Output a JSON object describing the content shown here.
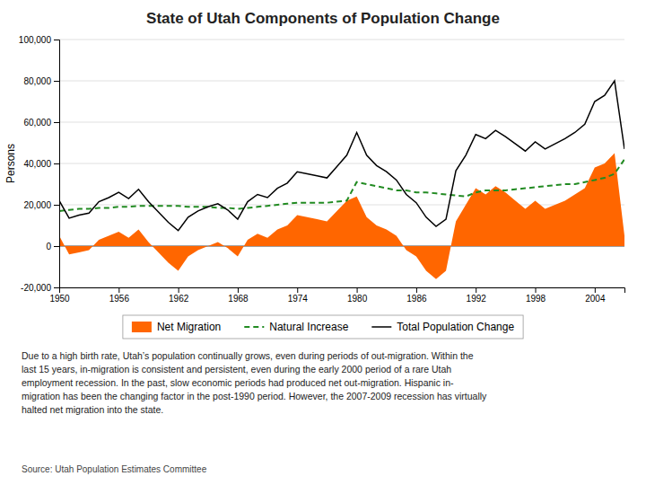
{
  "chart_data": {
    "type": "line",
    "title": "State of Utah Components of Population Change",
    "ylabel": "Persons",
    "x": [
      1950,
      1951,
      1952,
      1953,
      1954,
      1955,
      1956,
      1957,
      1958,
      1959,
      1960,
      1961,
      1962,
      1963,
      1964,
      1965,
      1966,
      1967,
      1968,
      1969,
      1970,
      1971,
      1972,
      1973,
      1974,
      1975,
      1976,
      1977,
      1978,
      1979,
      1980,
      1981,
      1982,
      1983,
      1984,
      1985,
      1986,
      1987,
      1988,
      1989,
      1990,
      1991,
      1992,
      1993,
      1994,
      1995,
      1996,
      1997,
      1998,
      1999,
      2000,
      2001,
      2002,
      2003,
      2004,
      2005,
      2006,
      2007
    ],
    "series": [
      {
        "name": "Net Migration",
        "type": "area",
        "color": "#FF6600",
        "values": [
          5000,
          -4000,
          -3000,
          -2000,
          3000,
          5000,
          7000,
          4000,
          8000,
          2000,
          -3000,
          -8000,
          -12000,
          -5000,
          -2000,
          0,
          2000,
          -1000,
          -5000,
          3000,
          6000,
          4000,
          8000,
          10000,
          15000,
          14000,
          13000,
          12000,
          17000,
          22000,
          24000,
          14000,
          10000,
          8000,
          5000,
          -2000,
          -5000,
          -12000,
          -16000,
          -12000,
          12000,
          20000,
          28000,
          25000,
          29000,
          26000,
          22000,
          18000,
          22000,
          18000,
          20000,
          22000,
          25000,
          28000,
          38000,
          40000,
          45000,
          5000
        ]
      },
      {
        "name": "Natural Increase",
        "type": "line",
        "line_style": "dashed",
        "color": "#228B22",
        "values": [
          17000,
          17500,
          18000,
          18000,
          18500,
          18500,
          19000,
          19000,
          19500,
          19500,
          19500,
          19500,
          19500,
          19000,
          19000,
          19000,
          18500,
          18500,
          18000,
          18500,
          19000,
          19500,
          20000,
          20500,
          21000,
          21000,
          21000,
          21000,
          21500,
          22000,
          31000,
          30000,
          29000,
          28000,
          27000,
          27000,
          26000,
          26000,
          25500,
          25000,
          24500,
          24000,
          26000,
          27000,
          27000,
          27000,
          27500,
          28000,
          28500,
          29000,
          29500,
          30000,
          30000,
          31000,
          32000,
          33000,
          35000,
          42000
        ]
      },
      {
        "name": "Total Population Change",
        "type": "line",
        "line_style": "solid",
        "color": "#000000",
        "values": [
          22000,
          13500,
          15000,
          16000,
          21500,
          23500,
          26000,
          23000,
          27500,
          21500,
          16500,
          11500,
          7500,
          14000,
          17000,
          19000,
          20500,
          17500,
          13000,
          21500,
          25000,
          23500,
          28000,
          30500,
          36000,
          35000,
          34000,
          33000,
          38500,
          44000,
          55000,
          44000,
          39000,
          36000,
          32000,
          25000,
          21000,
          14000,
          9500,
          13000,
          36500,
          44000,
          54000,
          52000,
          56000,
          53000,
          49500,
          46000,
          50500,
          47000,
          49500,
          52000,
          55000,
          59000,
          70000,
          73000,
          80000,
          47000
        ]
      }
    ],
    "xlim": [
      1950,
      2007
    ],
    "xticks": [
      1950,
      1956,
      1962,
      1968,
      1974,
      1980,
      1986,
      1992,
      1998,
      2004
    ],
    "ylim": [
      -20000,
      100000
    ],
    "yticks": [
      {
        "value": -20000,
        "label": "-20,000"
      },
      0,
      {
        "value": 20000,
        "label": "20,000"
      },
      {
        "value": 40000,
        "label": "40,000"
      },
      {
        "value": 60000,
        "label": "60,000"
      },
      {
        "value": 80000,
        "label": "80,000"
      },
      {
        "value": 100000,
        "label": "100,000"
      }
    ],
    "grid": true,
    "legend": "bottom",
    "annotations": [
      "Due to a high birth rate, Utah’s population continually grows, even during periods of out-migration. Within the",
      "last 15 years, in-migration is consistent and persistent, even during the early 2000 period of a rare Utah",
      "employment recession. In the past, slow economic periods had produced net out-migration. Hispanic in-",
      "migration has been the changing factor in the post-1990 period. However, the 2007-2009 recession has virtually",
      "halted net migration into the state."
    ],
    "source": "Source:  Utah Population Estimates Committee"
  }
}
